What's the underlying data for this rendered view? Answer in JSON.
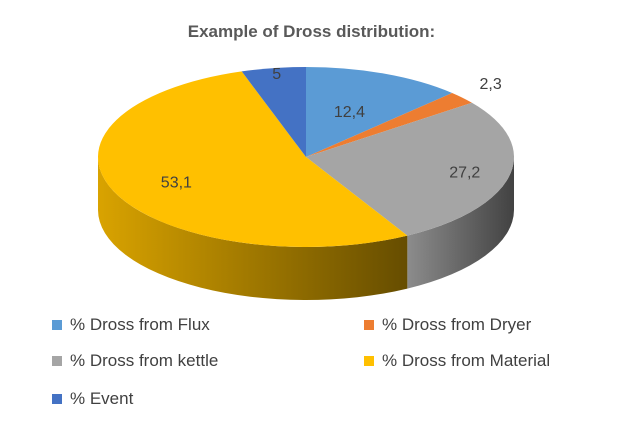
{
  "chart_data": {
    "type": "pie",
    "title": "Example of Dross distribution:",
    "categories": [
      "% Dross from Flux",
      "% Dross from Dryer",
      "% Dross from kettle",
      "% Dross from Material",
      "% Event"
    ],
    "values": [
      12.4,
      2.3,
      27.2,
      53.1,
      5
    ],
    "data_labels": [
      "12,4",
      "2,3",
      "27,2",
      "53,1",
      "5"
    ],
    "colors": [
      "#5B9BD5",
      "#ED7D31",
      "#A5A5A5",
      "#FFC000",
      "#4472C4"
    ],
    "three_d": true,
    "legend_position": "bottom"
  }
}
